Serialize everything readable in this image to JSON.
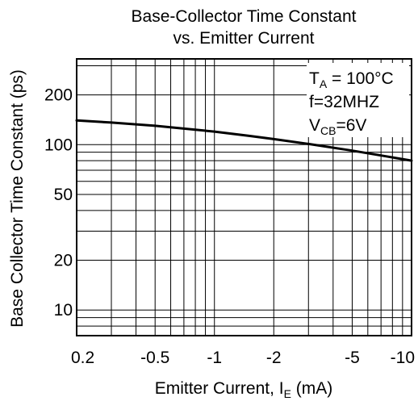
{
  "chart_data": {
    "type": "line",
    "title_line1": "Base-Collector Time Constant",
    "title_line2": "vs. Emitter Current",
    "xlabel": {
      "main": "Emitter Current, I",
      "sub": "E",
      "unit": " (mA)"
    },
    "ylabel": "Base Collector Time Constant (ps)",
    "x_scale": "log",
    "y_scale": "log",
    "x_domain": [
      0.2,
      10
    ],
    "y_domain": [
      7,
      330
    ],
    "x_ticks": [
      {
        "value": 0.2,
        "label": "0.2"
      },
      {
        "value": 0.5,
        "label": "-0.5"
      },
      {
        "value": 1,
        "label": "-1"
      },
      {
        "value": 2,
        "label": "-2"
      },
      {
        "value": 5,
        "label": "-5"
      },
      {
        "value": 10,
        "label": "-10"
      }
    ],
    "y_ticks": [
      {
        "value": 10,
        "label": "10"
      },
      {
        "value": 20,
        "label": "20"
      },
      {
        "value": 50,
        "label": "50"
      },
      {
        "value": 100,
        "label": "100"
      },
      {
        "value": 200,
        "label": "200"
      }
    ],
    "x_grid": [
      0.2,
      0.3,
      0.4,
      0.5,
      0.6,
      0.7,
      0.8,
      0.9,
      1,
      2,
      3,
      4,
      5,
      6,
      7,
      8,
      9,
      10
    ],
    "y_grid": [
      8,
      9,
      10,
      20,
      30,
      40,
      50,
      60,
      70,
      80,
      90,
      100,
      200,
      300
    ],
    "grid": true,
    "legend": "none",
    "annotation": {
      "line1_main": "T",
      "line1_sub": "A",
      "line1_rest": " = 100°C",
      "line2": "f=32MHZ",
      "line3_main": "V",
      "line3_sub": "CB",
      "line3_rest": "=6V"
    },
    "series": [
      {
        "x": [
          0.2,
          0.3,
          0.5,
          0.7,
          1,
          1.5,
          2,
          3,
          5,
          7,
          10
        ],
        "y": [
          140,
          136,
          130,
          125,
          120,
          113,
          108,
          101,
          92,
          86,
          80
        ]
      }
    ]
  }
}
